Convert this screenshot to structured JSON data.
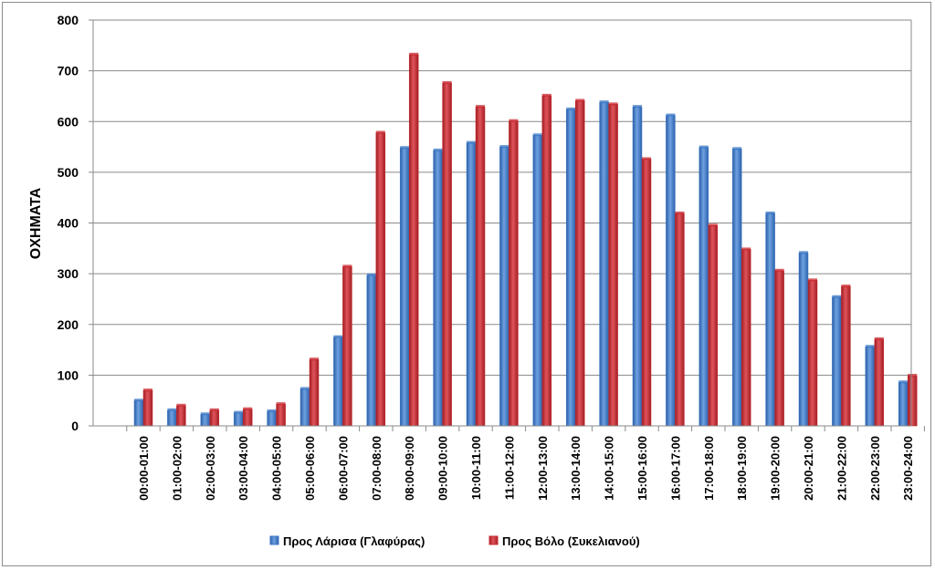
{
  "chart_data": {
    "type": "bar",
    "ylabel": "ΟΧΗΜΑΤΑ",
    "xlabel": "",
    "ylim": [
      0,
      800
    ],
    "yticks": [
      0,
      100,
      200,
      300,
      400,
      500,
      600,
      700,
      800
    ],
    "grid": true,
    "legend_position": "bottom",
    "categories": [
      "00:00-01:00",
      "01:00-02:00",
      "02:00-03:00",
      "03:00-04:00",
      "04:00-05:00",
      "05:00-06:00",
      "06:00-07:00",
      "07:00-08:00",
      "08:00-09:00",
      "09:00-10:00",
      "10:00-11:00",
      "11:00-12:00",
      "12:00-13:00",
      "13:00-14:00",
      "14:00-15:00",
      "15:00-16:00",
      "16:00-17:00",
      "17:00-18:00",
      "18:00-19:00",
      "19:00-20:00",
      "20:00-21:00",
      "21:00-22:00",
      "22:00-23:00",
      "23:00-24:00"
    ],
    "series": [
      {
        "name": "Προς Λάρισα (Γλαφύρας)",
        "color": "#3a76c4",
        "values": [
          50,
          31,
          23,
          26,
          29,
          73,
          175,
          297,
          548,
          543,
          558,
          550,
          573,
          624,
          638,
          629,
          612,
          549,
          546,
          419,
          341,
          254,
          156,
          86
        ]
      },
      {
        "name": "Προς Βόλο (Συκελιανού)",
        "color": "#c8282f",
        "values": [
          70,
          40,
          31,
          33,
          43,
          131,
          314,
          578,
          732,
          676,
          629,
          601,
          651,
          641,
          634,
          526,
          419,
          395,
          348,
          306,
          287,
          275,
          171,
          99
        ]
      }
    ]
  }
}
